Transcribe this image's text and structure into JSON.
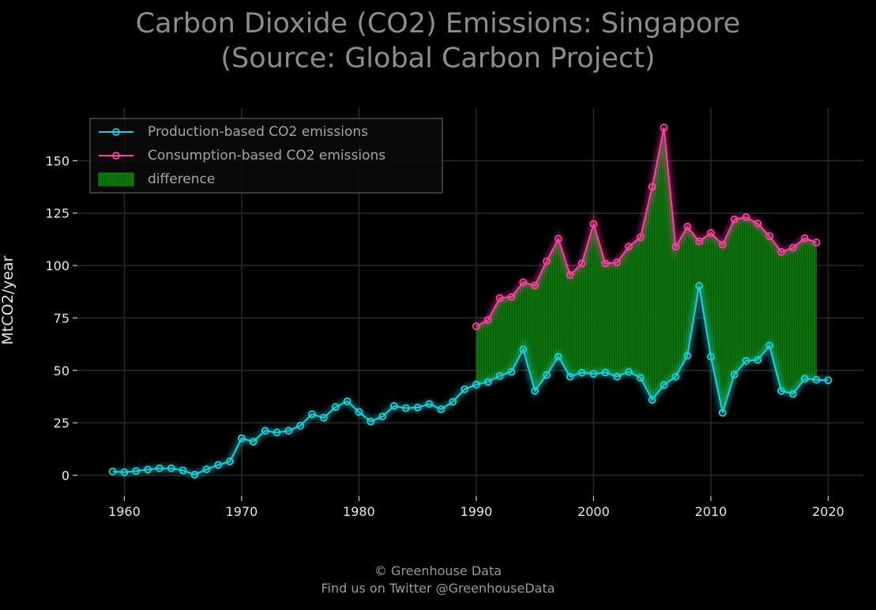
{
  "chart_data": {
    "type": "line",
    "title": [
      "Carbon Dioxide (CO2) Emissions: Singapore",
      "(Source: Global Carbon Project)"
    ],
    "ylabel": "MtCO2/year",
    "xlabel": "",
    "xlim": [
      1956,
      2023
    ],
    "ylim": [
      -10,
      175
    ],
    "xticks": [
      1960,
      1970,
      1980,
      1990,
      2000,
      2010,
      2020
    ],
    "yticks": [
      0,
      25,
      50,
      75,
      100,
      125,
      150
    ],
    "grid": true,
    "legend_position": "top-left",
    "series": [
      {
        "name": "Production-based CO2 emissions",
        "color": "#19d3da",
        "x": [
          1959,
          1960,
          1961,
          1962,
          1963,
          1964,
          1965,
          1966,
          1967,
          1968,
          1969,
          1970,
          1971,
          1972,
          1973,
          1974,
          1975,
          1976,
          1977,
          1978,
          1979,
          1980,
          1981,
          1982,
          1983,
          1984,
          1985,
          1986,
          1987,
          1988,
          1989,
          1990,
          1991,
          1992,
          1993,
          1994,
          1995,
          1996,
          1997,
          1998,
          1999,
          2000,
          2001,
          2002,
          2003,
          2004,
          2005,
          2006,
          2007,
          2008,
          2009,
          2010,
          2011,
          2012,
          2013,
          2014,
          2015,
          2016,
          2017,
          2018,
          2019,
          2020
        ],
        "values": [
          1.8,
          1.4,
          2.0,
          2.7,
          3.3,
          3.3,
          2.3,
          0.3,
          2.8,
          4.9,
          6.6,
          17.6,
          16.0,
          21.2,
          20.4,
          21.2,
          23.6,
          29.1,
          27.4,
          32.5,
          35.2,
          30.2,
          25.6,
          28.0,
          33.0,
          32.0,
          32.3,
          34.0,
          31.5,
          35.0,
          41.0,
          43.2,
          44.5,
          47.3,
          49.3,
          60.0,
          40.2,
          47.8,
          56.5,
          47.0,
          48.9,
          48.3,
          49.0,
          47.0,
          49.3,
          46.5,
          36.0,
          43.0,
          47.0,
          57.0,
          90.3,
          56.5,
          29.8,
          48.0,
          54.5,
          55.0,
          61.8,
          40.2,
          38.8,
          46.0,
          45.5,
          45.3
        ]
      },
      {
        "name": "Consumption-based CO2 emissions",
        "color": "#ff3fa4",
        "x": [
          1990,
          1991,
          1992,
          1993,
          1994,
          1995,
          1996,
          1997,
          1998,
          1999,
          2000,
          2001,
          2002,
          2003,
          2004,
          2005,
          2006,
          2007,
          2008,
          2009,
          2010,
          2011,
          2012,
          2013,
          2014,
          2015,
          2016,
          2017,
          2018,
          2019
        ],
        "values": [
          71.0,
          74.0,
          84.5,
          85.0,
          92.0,
          90.5,
          102.0,
          112.8,
          95.5,
          101.0,
          119.8,
          101.0,
          101.5,
          109.0,
          113.5,
          137.5,
          165.8,
          109.0,
          118.5,
          111.5,
          115.5,
          110.0,
          122.0,
          123.0,
          120.0,
          114.0,
          106.5,
          108.5,
          113.0,
          111.0
        ]
      },
      {
        "name": "difference",
        "color": "#0b8f0b"
      }
    ]
  },
  "footer": {
    "line1": "© Greenhouse Data",
    "line2": "Find us on Twitter @GreenhouseData"
  }
}
